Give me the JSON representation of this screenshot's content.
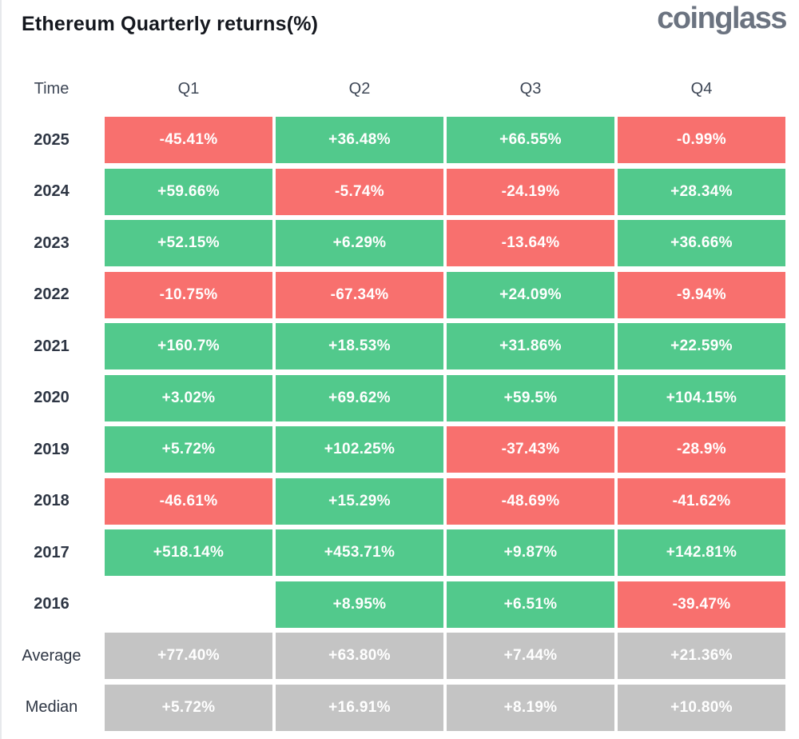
{
  "header": {
    "title": "Ethereum Quarterly returns(%)",
    "brand": "coinglass"
  },
  "colors": {
    "green": "#52C98C",
    "red": "#F8706E",
    "gray": "#C4C4C4"
  },
  "table": {
    "columns": [
      "Time",
      "Q1",
      "Q2",
      "Q3",
      "Q4"
    ],
    "rows": [
      {
        "label": "2025",
        "cells": [
          {
            "value": "-45.41%",
            "color": "red"
          },
          {
            "value": "+36.48%",
            "color": "green"
          },
          {
            "value": "+66.55%",
            "color": "green"
          },
          {
            "value": "-0.99%",
            "color": "red"
          }
        ]
      },
      {
        "label": "2024",
        "cells": [
          {
            "value": "+59.66%",
            "color": "green"
          },
          {
            "value": "-5.74%",
            "color": "red"
          },
          {
            "value": "-24.19%",
            "color": "red"
          },
          {
            "value": "+28.34%",
            "color": "green"
          }
        ]
      },
      {
        "label": "2023",
        "cells": [
          {
            "value": "+52.15%",
            "color": "green"
          },
          {
            "value": "+6.29%",
            "color": "green"
          },
          {
            "value": "-13.64%",
            "color": "red"
          },
          {
            "value": "+36.66%",
            "color": "green"
          }
        ]
      },
      {
        "label": "2022",
        "cells": [
          {
            "value": "-10.75%",
            "color": "red"
          },
          {
            "value": "-67.34%",
            "color": "red"
          },
          {
            "value": "+24.09%",
            "color": "green"
          },
          {
            "value": "-9.94%",
            "color": "red"
          }
        ]
      },
      {
        "label": "2021",
        "cells": [
          {
            "value": "+160.7%",
            "color": "green"
          },
          {
            "value": "+18.53%",
            "color": "green"
          },
          {
            "value": "+31.86%",
            "color": "green"
          },
          {
            "value": "+22.59%",
            "color": "green"
          }
        ]
      },
      {
        "label": "2020",
        "cells": [
          {
            "value": "+3.02%",
            "color": "green"
          },
          {
            "value": "+69.62%",
            "color": "green"
          },
          {
            "value": "+59.5%",
            "color": "green"
          },
          {
            "value": "+104.15%",
            "color": "green"
          }
        ]
      },
      {
        "label": "2019",
        "cells": [
          {
            "value": "+5.72%",
            "color": "green"
          },
          {
            "value": "+102.25%",
            "color": "green"
          },
          {
            "value": "-37.43%",
            "color": "red"
          },
          {
            "value": "-28.9%",
            "color": "red"
          }
        ]
      },
      {
        "label": "2018",
        "cells": [
          {
            "value": "-46.61%",
            "color": "red"
          },
          {
            "value": "+15.29%",
            "color": "green"
          },
          {
            "value": "-48.69%",
            "color": "red"
          },
          {
            "value": "-41.62%",
            "color": "red"
          }
        ]
      },
      {
        "label": "2017",
        "cells": [
          {
            "value": "+518.14%",
            "color": "green"
          },
          {
            "value": "+453.71%",
            "color": "green"
          },
          {
            "value": "+9.87%",
            "color": "green"
          },
          {
            "value": "+142.81%",
            "color": "green"
          }
        ]
      },
      {
        "label": "2016",
        "cells": [
          {
            "value": "",
            "color": "none"
          },
          {
            "value": "+8.95%",
            "color": "green"
          },
          {
            "value": "+6.51%",
            "color": "green"
          },
          {
            "value": "-39.47%",
            "color": "red"
          }
        ]
      },
      {
        "label": "Average",
        "cells": [
          {
            "value": "+77.40%",
            "color": "gray"
          },
          {
            "value": "+63.80%",
            "color": "gray"
          },
          {
            "value": "+7.44%",
            "color": "gray"
          },
          {
            "value": "+21.36%",
            "color": "gray"
          }
        ]
      },
      {
        "label": "Median",
        "cells": [
          {
            "value": "+5.72%",
            "color": "gray"
          },
          {
            "value": "+16.91%",
            "color": "gray"
          },
          {
            "value": "+8.19%",
            "color": "gray"
          },
          {
            "value": "+10.80%",
            "color": "gray"
          }
        ]
      }
    ]
  },
  "chart_data": {
    "type": "table",
    "title": "Ethereum Quarterly returns(%)",
    "categories": [
      "Q1",
      "Q2",
      "Q3",
      "Q4"
    ],
    "series": [
      {
        "name": "2025",
        "values": [
          -45.41,
          36.48,
          66.55,
          -0.99
        ]
      },
      {
        "name": "2024",
        "values": [
          59.66,
          -5.74,
          -24.19,
          28.34
        ]
      },
      {
        "name": "2023",
        "values": [
          52.15,
          6.29,
          -13.64,
          36.66
        ]
      },
      {
        "name": "2022",
        "values": [
          -10.75,
          -67.34,
          24.09,
          -9.94
        ]
      },
      {
        "name": "2021",
        "values": [
          160.7,
          18.53,
          31.86,
          22.59
        ]
      },
      {
        "name": "2020",
        "values": [
          3.02,
          69.62,
          59.5,
          104.15
        ]
      },
      {
        "name": "2019",
        "values": [
          5.72,
          102.25,
          -37.43,
          -28.9
        ]
      },
      {
        "name": "2018",
        "values": [
          -46.61,
          15.29,
          -48.69,
          -41.62
        ]
      },
      {
        "name": "2017",
        "values": [
          518.14,
          453.71,
          9.87,
          142.81
        ]
      },
      {
        "name": "2016",
        "values": [
          null,
          8.95,
          6.51,
          -39.47
        ]
      },
      {
        "name": "Average",
        "values": [
          77.4,
          63.8,
          7.44,
          21.36
        ]
      },
      {
        "name": "Median",
        "values": [
          5.72,
          16.91,
          8.19,
          10.8
        ]
      }
    ],
    "color_rule": "positive=green, negative=red, Average/Median rows=gray, missing=blank",
    "legend_position": "none",
    "grid": false
  }
}
